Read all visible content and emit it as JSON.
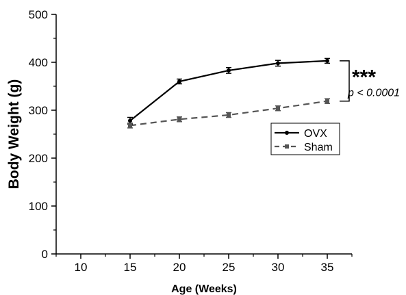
{
  "chart_data": {
    "type": "line",
    "xlabel": "Age (Weeks)",
    "ylabel": "Body Weight (g)",
    "xlim": [
      7.5,
      37.5
    ],
    "ylim": [
      0,
      500
    ],
    "xticks": [
      10,
      15,
      20,
      25,
      30,
      35
    ],
    "yticks": [
      0,
      100,
      200,
      300,
      400,
      500
    ],
    "x": [
      15,
      20,
      25,
      30,
      35
    ],
    "series": [
      {
        "name": "OVX",
        "values": [
          278,
          360,
          383,
          398,
          403
        ],
        "errors": [
          7,
          5,
          6,
          6,
          5
        ],
        "color": "#000000",
        "line_style": "solid",
        "marker": "circle"
      },
      {
        "name": "Sham",
        "values": [
          268,
          281,
          290,
          304,
          319
        ],
        "errors": [
          5,
          5,
          5,
          5,
          5
        ],
        "color": "#555555",
        "line_style": "dashed",
        "marker": "square"
      }
    ],
    "legend_placement": "right",
    "significance": {
      "stars": "***",
      "p_text": "p < 0.0001"
    },
    "grid": false
  }
}
